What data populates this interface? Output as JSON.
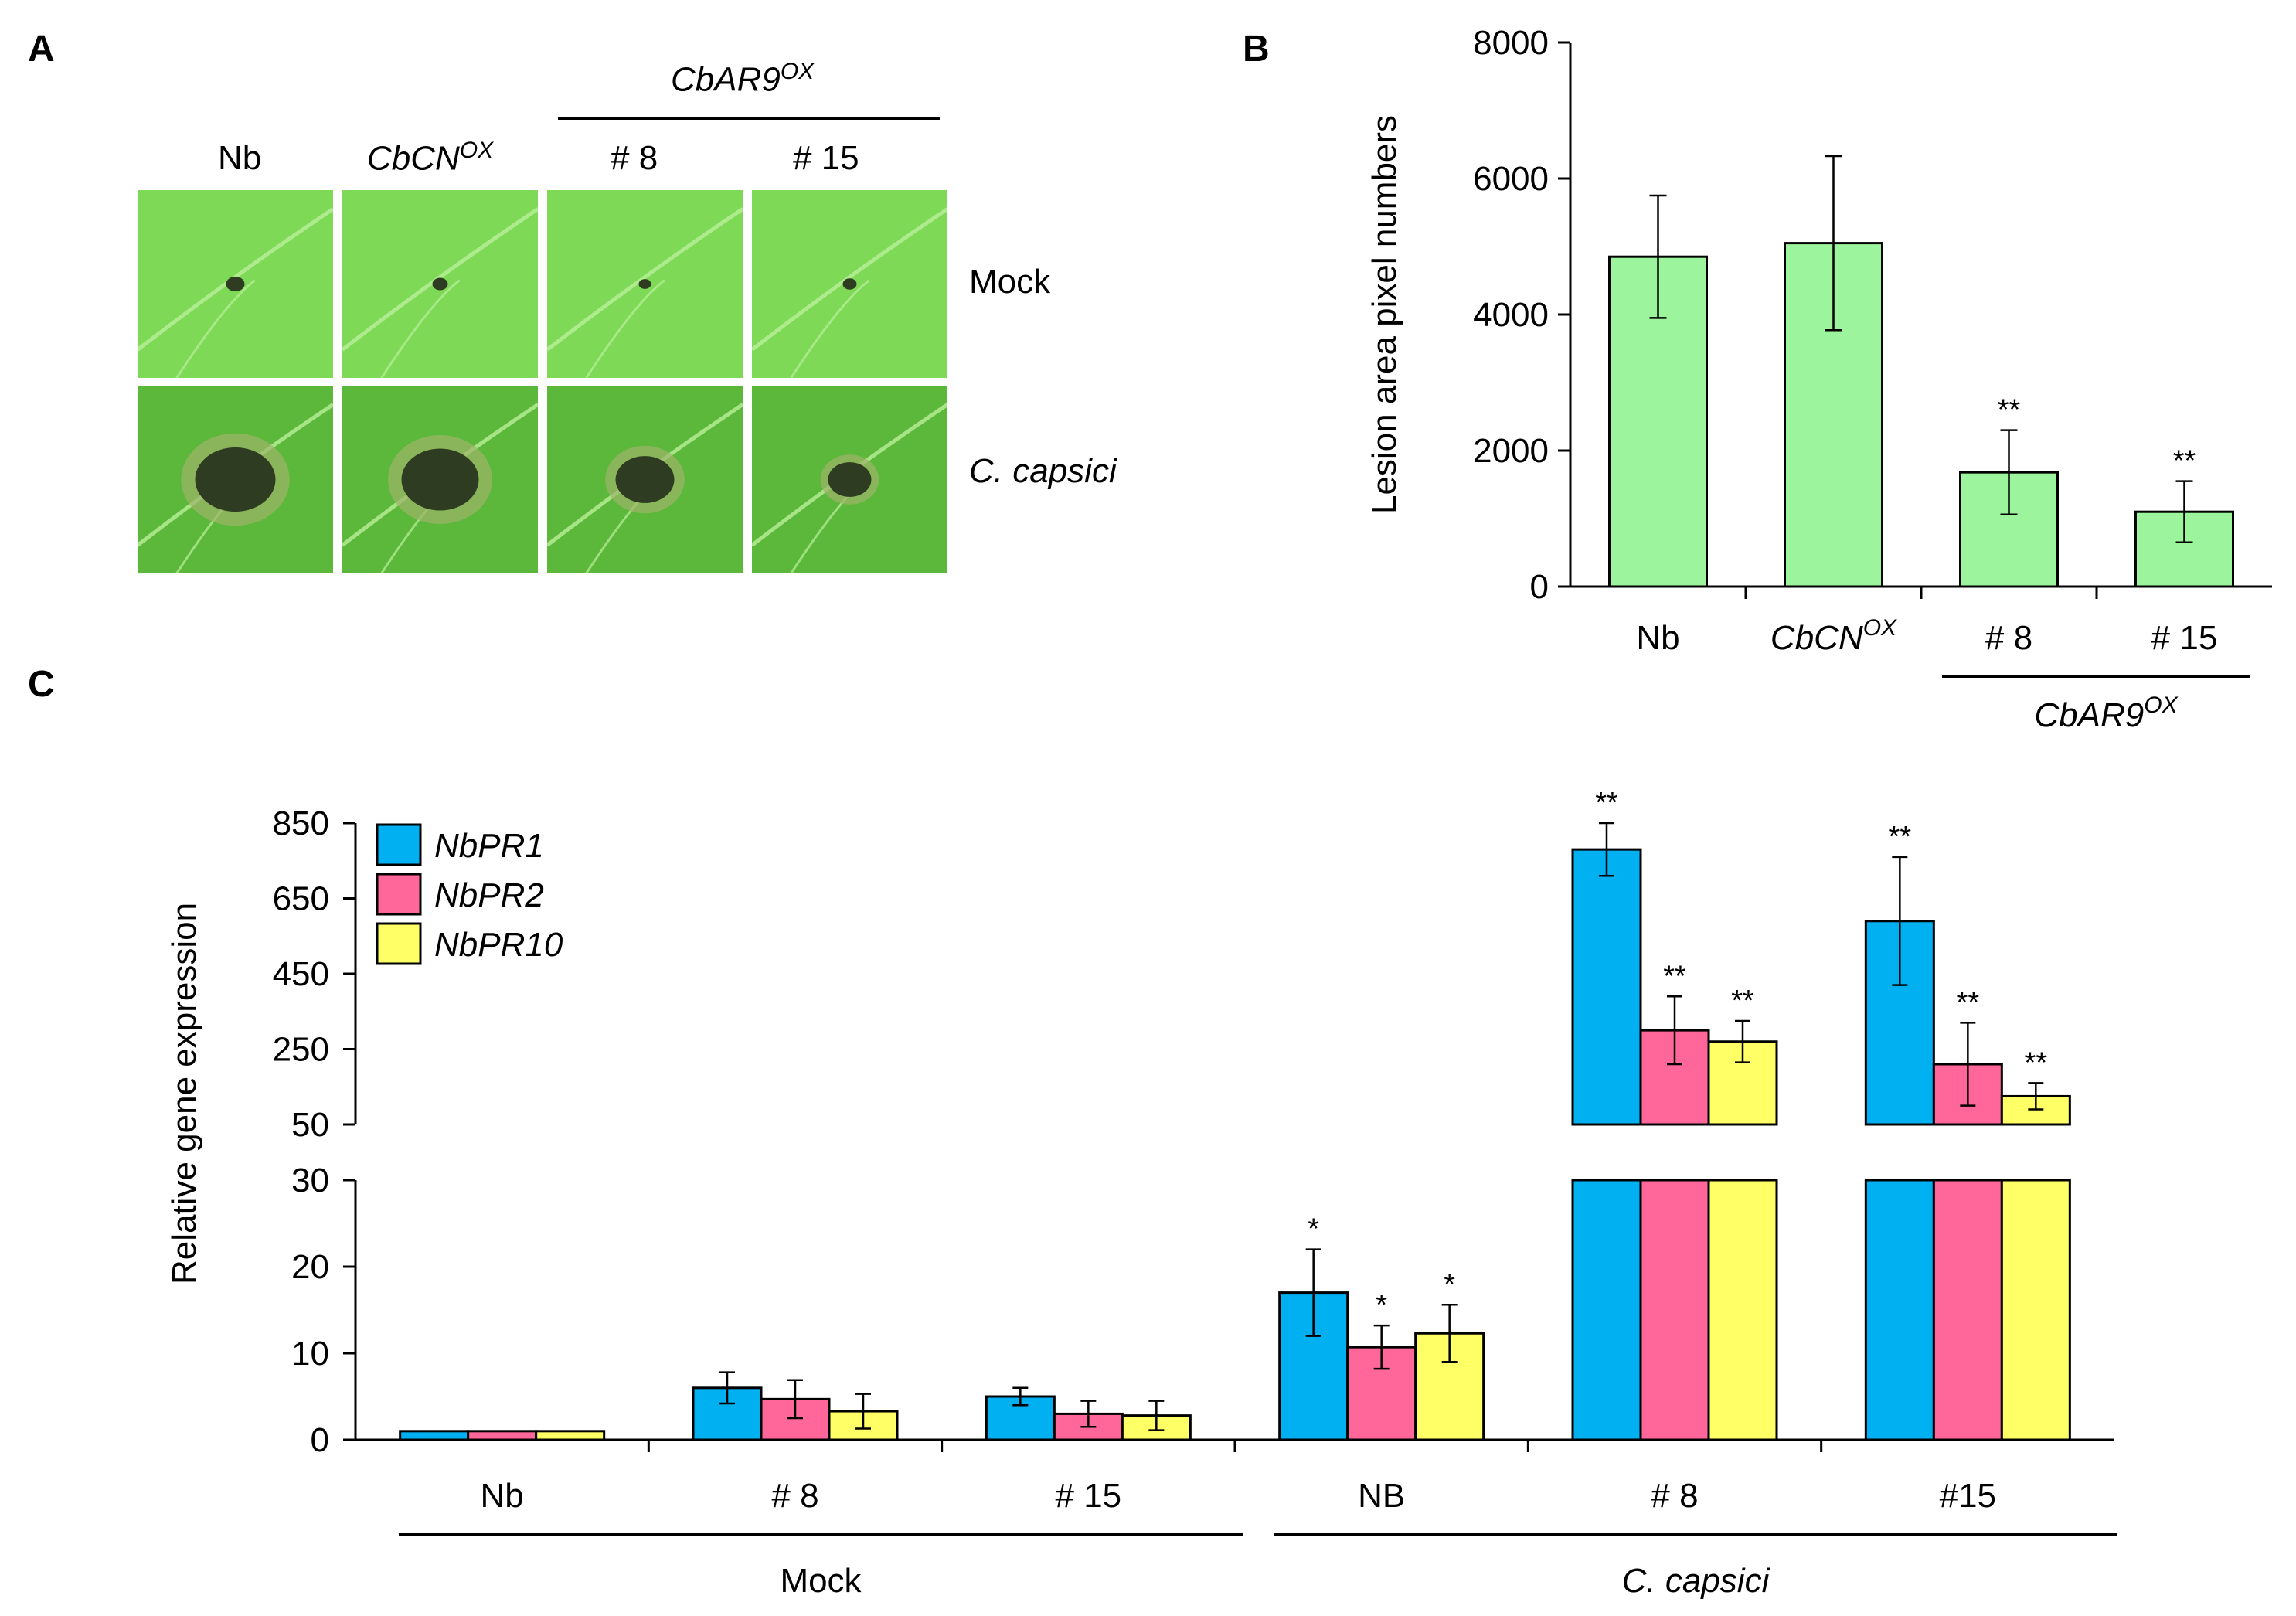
{
  "panel_a": {
    "letter": "A",
    "group_label": "CbAR9",
    "group_label_sup": "OX",
    "columns": [
      {
        "main": "Nb",
        "sup": "",
        "italic": false
      },
      {
        "main": "CbCN",
        "sup": "OX",
        "italic": true
      },
      {
        "main": "# 8",
        "sup": "",
        "italic": false
      },
      {
        "main": "# 15",
        "sup": "",
        "italic": false
      }
    ],
    "rows": [
      {
        "label": "Mock",
        "italic": false
      },
      {
        "label": "C. capsici",
        "italic": true
      }
    ],
    "colors": {
      "leaf_light": "#7ed957",
      "leaf_dark": "#5cb83a",
      "lesion": "#2e3d22"
    }
  },
  "chart_data": [
    {
      "panel": "B",
      "type": "bar",
      "categories": [
        "Nb",
        "CbCN",
        "# 8",
        "# 15"
      ],
      "category_sups": [
        "",
        "OX",
        "",
        ""
      ],
      "category_italic": [
        false,
        true,
        false,
        false
      ],
      "values": [
        4850,
        5050,
        1680,
        1100
      ],
      "errors": [
        900,
        1280,
        620,
        450
      ],
      "significance": [
        "",
        "",
        "**",
        "**"
      ],
      "ylabel": "Lesion area pixel numbers",
      "ylim": [
        0,
        8000
      ],
      "yticks": [
        0,
        2000,
        4000,
        6000,
        8000
      ],
      "group_label": "CbAR9",
      "group_label_sup": "OX",
      "bar_color": "#9cf59c"
    },
    {
      "panel": "C",
      "type": "bar",
      "categories": [
        "Nb",
        "# 8",
        "# 15",
        "NB",
        "# 8",
        "#15"
      ],
      "groups": [
        "Mock",
        "C. capsici"
      ],
      "group_italic": [
        false,
        true
      ],
      "ylabel": "Relative gene expression",
      "lower_axis": {
        "ylim": [
          0,
          30
        ],
        "yticks": [
          0,
          10,
          20,
          30
        ]
      },
      "upper_axis": {
        "ylim": [
          50,
          850
        ],
        "yticks": [
          50,
          250,
          450,
          650,
          850
        ]
      },
      "series": [
        {
          "name": "NbPR1",
          "color": "#00b0f0",
          "values": [
            1,
            6,
            5,
            17,
            780,
            590
          ],
          "errors": [
            0,
            1.8,
            1,
            5,
            70,
            170
          ],
          "significance": [
            "",
            "",
            "",
            "*",
            "**",
            "**"
          ]
        },
        {
          "name": "NbPR2",
          "color": "#ff6699",
          "values": [
            1,
            4.7,
            3,
            10.7,
            300,
            210
          ],
          "errors": [
            0,
            2.2,
            1.5,
            2.5,
            90,
            110
          ],
          "significance": [
            "",
            "",
            "",
            "*",
            "**",
            "**"
          ]
        },
        {
          "name": "NbPR10",
          "color": "#ffff66",
          "values": [
            1,
            3.3,
            2.8,
            12.3,
            270,
            125
          ],
          "errors": [
            0,
            2,
            1.7,
            3.3,
            55,
            35
          ],
          "significance": [
            "",
            "",
            "",
            "*",
            "**",
            "**"
          ]
        }
      ]
    }
  ]
}
